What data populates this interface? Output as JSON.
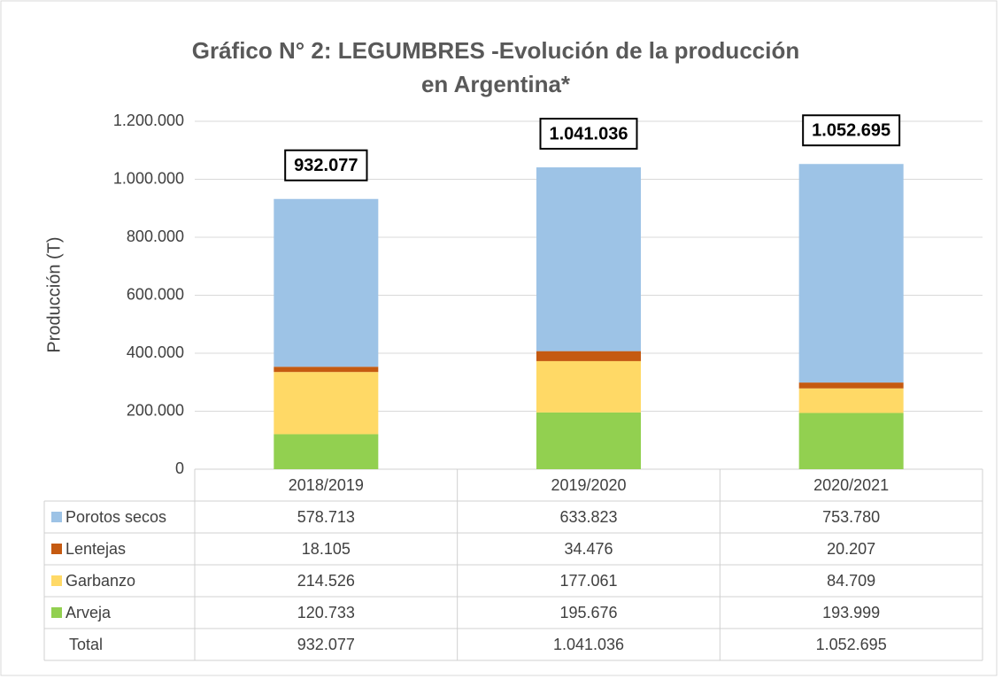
{
  "chart_data": {
    "type": "stacked_bar",
    "title": "Gráfico N° 2: LEGUMBRES -Evolución de la producción en Argentina*",
    "y_label": "Producción (T)",
    "categories": [
      "2018/2019",
      "2019/2020",
      "2020/2021"
    ],
    "series": [
      {
        "name": "Porotos secos",
        "color": "#9dc3e6",
        "values": [
          578713,
          633823,
          753780
        ],
        "value_labels": [
          "578.713",
          "633.823",
          "753.780"
        ]
      },
      {
        "name": "Lentejas",
        "color": "#c55a11",
        "values": [
          18105,
          34476,
          20207
        ],
        "value_labels": [
          "18.105",
          "34.476",
          "20.207"
        ]
      },
      {
        "name": "Garbanzo",
        "color": "#ffd966",
        "values": [
          214526,
          177061,
          84709
        ],
        "value_labels": [
          "214.526",
          "177.061",
          "84.709"
        ]
      },
      {
        "name": "Arveja",
        "color": "#92d050",
        "values": [
          120733,
          195676,
          193999
        ],
        "value_labels": [
          "120.733",
          "195.676",
          "193.999"
        ]
      }
    ],
    "total": {
      "name": "Total",
      "values": [
        932077,
        1041036,
        1052695
      ],
      "value_labels": [
        "932.077",
        "1.041.036",
        "1.052.695"
      ]
    },
    "ylim": [
      0,
      1200000
    ],
    "yticks": [
      0,
      {
        "value": 200000,
        "label": "200.000"
      },
      {
        "value": 400000,
        "label": "400.000"
      },
      {
        "value": 600000,
        "label": "600.000"
      },
      {
        "value": 800000,
        "label": "800.000"
      },
      {
        "value": 1000000,
        "label": "1.000.000"
      },
      {
        "value": 1200000,
        "label": "1.200.000"
      }
    ],
    "grid": true
  }
}
